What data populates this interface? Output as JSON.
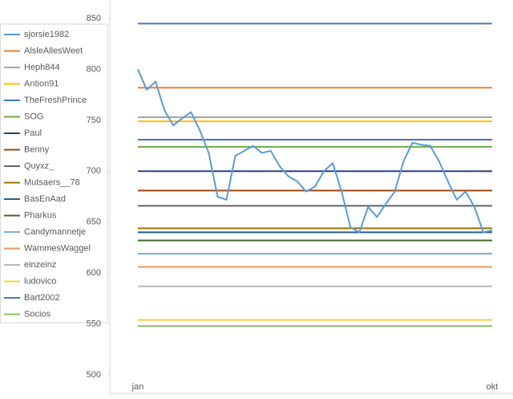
{
  "chart_data": {
    "type": "line",
    "legend": "left",
    "xlim": [
      0,
      40
    ],
    "xticks": [
      {
        "value": 0,
        "label": "jan"
      },
      {
        "value": 40,
        "label": "okt"
      }
    ],
    "ylim": [
      500,
      850
    ],
    "yticks": [
      500,
      550,
      600,
      650,
      700,
      750,
      800,
      850
    ],
    "series": [
      {
        "name": "sjorsie1982",
        "color": "#5b9bd5",
        "x": [
          0,
          1,
          2,
          3,
          4,
          5,
          6,
          7,
          8,
          9,
          10,
          11,
          12,
          13,
          14,
          15,
          16,
          17,
          18,
          19,
          20,
          21,
          22,
          23,
          24,
          25,
          26,
          27,
          28,
          29,
          30,
          31,
          32,
          33,
          34,
          35,
          36,
          37,
          38,
          39,
          40
        ],
        "values": [
          800,
          780,
          788,
          760,
          745,
          752,
          758,
          740,
          718,
          675,
          672,
          715,
          720,
          725,
          718,
          720,
          705,
          695,
          690,
          680,
          685,
          700,
          708,
          680,
          645,
          640,
          665,
          655,
          668,
          680,
          710,
          728,
          726,
          725,
          710,
          690,
          672,
          680,
          665,
          640,
          642
        ]
      },
      {
        "name": "AlsleAllesWeet",
        "color": "#ed7d31",
        "x": [
          0,
          40
        ],
        "values": [
          782,
          782
        ]
      },
      {
        "name": "Heph844",
        "color": "#a5a5a5",
        "x": [
          0,
          40
        ],
        "values": [
          753,
          753
        ]
      },
      {
        "name": "Antion91",
        "color": "#ffc000",
        "x": [
          0,
          40
        ],
        "values": [
          749,
          749
        ]
      },
      {
        "name": "TheFreshPrince",
        "color": "#4472c4",
        "x": [
          0,
          40
        ],
        "values": [
          731,
          731
        ]
      },
      {
        "name": "SOG",
        "color": "#70ad47",
        "x": [
          0,
          40
        ],
        "values": [
          724,
          724
        ]
      },
      {
        "name": "Paul",
        "color": "#264478",
        "x": [
          0,
          40
        ],
        "values": [
          700,
          700
        ]
      },
      {
        "name": "Benny",
        "color": "#9e480e",
        "x": [
          0,
          40
        ],
        "values": [
          681,
          681
        ]
      },
      {
        "name": "Quyxz_",
        "color": "#636363",
        "x": [
          0,
          40
        ],
        "values": [
          666,
          666
        ]
      },
      {
        "name": "Mutsaers__78",
        "color": "#997300",
        "x": [
          0,
          40
        ],
        "values": [
          644,
          644
        ]
      },
      {
        "name": "BasEnAad",
        "color": "#255e91",
        "x": [
          0,
          40
        ],
        "values": [
          640,
          640
        ]
      },
      {
        "name": "Pharkus",
        "color": "#43682b",
        "x": [
          0,
          40
        ],
        "values": [
          632,
          632
        ]
      },
      {
        "name": "Candymannetje",
        "color": "#7cafdd",
        "x": [
          0,
          40
        ],
        "values": [
          619,
          619
        ]
      },
      {
        "name": "WammesWaggel",
        "color": "#f1975a",
        "x": [
          0,
          40
        ],
        "values": [
          606,
          606
        ]
      },
      {
        "name": "einzeinz",
        "color": "#b7b7b7",
        "x": [
          0,
          40
        ],
        "values": [
          587,
          587
        ]
      },
      {
        "name": "ludovico",
        "color": "#ffcd33",
        "x": [
          0,
          40
        ],
        "values": [
          554,
          554
        ]
      },
      {
        "name": "Bart2002",
        "color": "#4a76b8",
        "x": [
          0,
          40
        ],
        "values": [
          845,
          845
        ]
      },
      {
        "name": "Socios",
        "color": "#8cc168",
        "x": [
          0,
          40
        ],
        "values": [
          548,
          548
        ]
      }
    ]
  }
}
